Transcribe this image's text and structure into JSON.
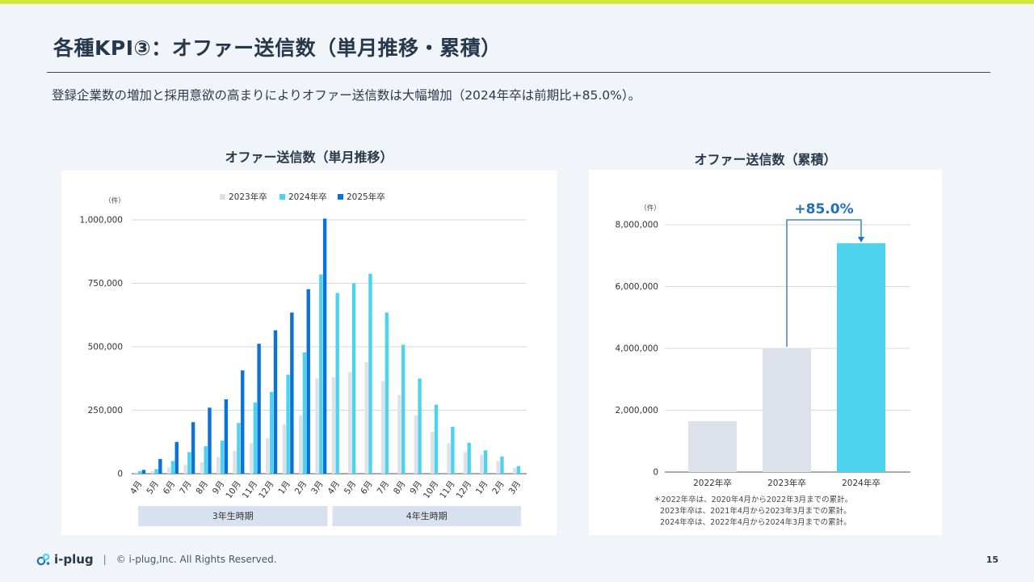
{
  "page": {
    "title": "各種KPI③：オファー送信数（単月推移・累積）",
    "subtitle": "登録企業数の増加と採用意欲の高まりによりオファー送信数は大幅増加（2024年卒は前期比+85.0%）。",
    "page_number": "15"
  },
  "footer": {
    "logo_text": "i-plug",
    "separator": "|",
    "copyright": "© i-plug,Inc. All Rights Reserved."
  },
  "colors": {
    "c2023": "#dde1ea",
    "c2024": "#4dd3ee",
    "c2025": "#0b72d9",
    "accent": "#1f6fc2",
    "lime": "#d4ea3a"
  },
  "chart_data": [
    {
      "type": "bar",
      "title": "オファー送信数（単月推移）",
      "unit_label": "（件）",
      "categories": [
        "4月",
        "5月",
        "6月",
        "7月",
        "8月",
        "9月",
        "10月",
        "11月",
        "12月",
        "1月",
        "2月",
        "3月",
        "4月",
        "5月",
        "6月",
        "7月",
        "8月",
        "9月",
        "10月",
        "11月",
        "12月",
        "1月",
        "2月",
        "3月"
      ],
      "series": [
        {
          "name": "2023年卒",
          "values": [
            5000,
            10000,
            25000,
            35000,
            45000,
            65000,
            90000,
            120000,
            140000,
            195000,
            230000,
            375000,
            380000,
            400000,
            440000,
            365000,
            310000,
            230000,
            165000,
            120000,
            85000,
            75000,
            50000,
            22000
          ]
        },
        {
          "name": "2024年卒",
          "values": [
            10000,
            18000,
            50000,
            85000,
            108000,
            130000,
            200000,
            280000,
            322000,
            390000,
            478000,
            785000,
            712000,
            750000,
            788000,
            635000,
            508000,
            375000,
            272000,
            185000,
            122000,
            92000,
            68000,
            30000
          ]
        },
        {
          "name": "2025年卒",
          "values": [
            15000,
            58000,
            125000,
            203000,
            260000,
            293000,
            407000,
            512000,
            565000,
            635000,
            727000,
            1005000,
            null,
            null,
            null,
            null,
            null,
            null,
            null,
            null,
            null,
            null,
            null,
            null
          ]
        }
      ],
      "ylim": [
        0,
        1000000
      ],
      "yticks": [
        "0",
        "250,000",
        "500,000",
        "750,000",
        "1,000,000"
      ],
      "ytick_values": [
        0,
        250000,
        500000,
        750000,
        1000000
      ],
      "legend_position": "top",
      "grid": true,
      "periods": [
        "3年生時期",
        "4年生時期"
      ]
    },
    {
      "type": "bar",
      "title": "オファー送信数（累積）",
      "unit_label": "（件）",
      "categories": [
        "2022年卒",
        "2023年卒",
        "2024年卒"
      ],
      "values": [
        1650000,
        4000000,
        7400000
      ],
      "ylim": [
        0,
        8000000
      ],
      "yticks": [
        "0",
        "2,000,000",
        "4,000,000",
        "6,000,000",
        "8,000,000"
      ],
      "ytick_values": [
        0,
        2000000,
        4000000,
        6000000,
        8000000
      ],
      "annotation": "+85.0%",
      "grid": true,
      "notes": [
        "＊2022年卒は、2020年4月から2022年3月までの累計。",
        "2023年卒は、2021年4月から2023年3月までの累計。",
        "2024年卒は、2022年4月から2024年3月までの累計。"
      ]
    }
  ]
}
